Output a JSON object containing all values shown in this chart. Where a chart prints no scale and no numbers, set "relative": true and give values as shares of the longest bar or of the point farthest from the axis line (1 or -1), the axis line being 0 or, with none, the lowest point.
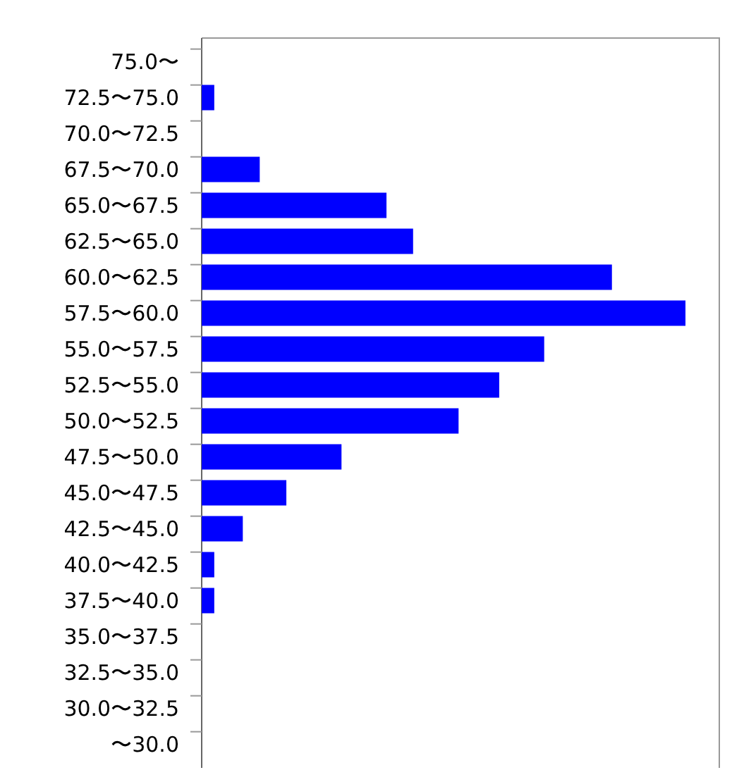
{
  "chart_data": {
    "type": "bar",
    "orientation": "horizontal",
    "relative": true,
    "color": "#0000ff",
    "categories": [
      "75.0〜",
      "72.5〜75.0",
      "70.0〜72.5",
      "67.5〜70.0",
      "65.0〜67.5",
      "62.5〜65.0",
      "60.0〜62.5",
      "57.5〜60.0",
      "55.0〜57.5",
      "52.5〜55.0",
      "50.0〜52.5",
      "47.5〜50.0",
      "45.0〜47.5",
      "42.5〜45.0",
      "40.0〜42.5",
      "37.5〜40.0",
      "35.0〜37.5",
      "32.5〜35.0",
      "30.0〜32.5",
      "〜30.0"
    ],
    "values": [
      0,
      0.026,
      0,
      0.12,
      0.382,
      0.437,
      0.848,
      1,
      0.708,
      0.615,
      0.531,
      0.289,
      0.175,
      0.085,
      0.026,
      0.026,
      0,
      0,
      0,
      0
    ]
  }
}
